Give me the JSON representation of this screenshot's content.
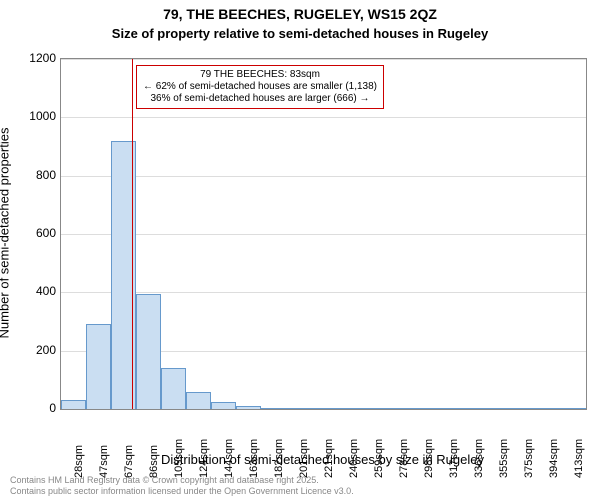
{
  "title": "79, THE BEECHES, RUGELEY, WS15 2QZ",
  "subtitle": "Size of property relative to semi-detached houses in Rugeley",
  "chart": {
    "type": "histogram",
    "ylabel": "Number of semi-detached properties",
    "xlabel": "Distribution of semi-detached houses by size in Rugeley",
    "ylim": [
      0,
      1200
    ],
    "ytick_step": 200,
    "yticks": [
      0,
      200,
      400,
      600,
      800,
      1000,
      1200
    ],
    "bins": [
      {
        "label": "28sqm",
        "value": 30
      },
      {
        "label": "47sqm",
        "value": 290
      },
      {
        "label": "67sqm",
        "value": 920
      },
      {
        "label": "86sqm",
        "value": 395
      },
      {
        "label": "105sqm",
        "value": 140
      },
      {
        "label": "124sqm",
        "value": 60
      },
      {
        "label": "144sqm",
        "value": 25
      },
      {
        "label": "163sqm",
        "value": 12
      },
      {
        "label": "182sqm",
        "value": 5
      },
      {
        "label": "201sqm",
        "value": 3
      },
      {
        "label": "221sqm",
        "value": 0
      },
      {
        "label": "240sqm",
        "value": 3
      },
      {
        "label": "259sqm",
        "value": 0
      },
      {
        "label": "278sqm",
        "value": 0
      },
      {
        "label": "298sqm",
        "value": 0
      },
      {
        "label": "317sqm",
        "value": 0
      },
      {
        "label": "336sqm",
        "value": 0
      },
      {
        "label": "355sqm",
        "value": 0
      },
      {
        "label": "375sqm",
        "value": 0
      },
      {
        "label": "394sqm",
        "value": 0
      },
      {
        "label": "413sqm",
        "value": 0
      }
    ],
    "bar_fill": "#cadef2",
    "bar_stroke": "#6699cc",
    "grid_color": "#dddddd",
    "axis_color": "#888888",
    "background_color": "#ffffff",
    "marker": {
      "bin_index": 2,
      "position_in_bin": 0.84,
      "color": "#cc0000"
    },
    "annotation": {
      "border_color": "#cc0000",
      "bg_color": "#ffffff",
      "lines": [
        "79 THE BEECHES: 83sqm",
        "← 62% of semi-detached houses are smaller (1,138)",
        "36% of semi-detached houses are larger (666) →"
      ]
    },
    "title_fontsize": 14,
    "subtitle_fontsize": 13,
    "label_fontsize": 13,
    "tick_fontsize": 11
  },
  "footer": {
    "line1": "Contains HM Land Registry data © Crown copyright and database right 2025.",
    "line2": "Contains public sector information licensed under the Open Government Licence v3.0."
  }
}
